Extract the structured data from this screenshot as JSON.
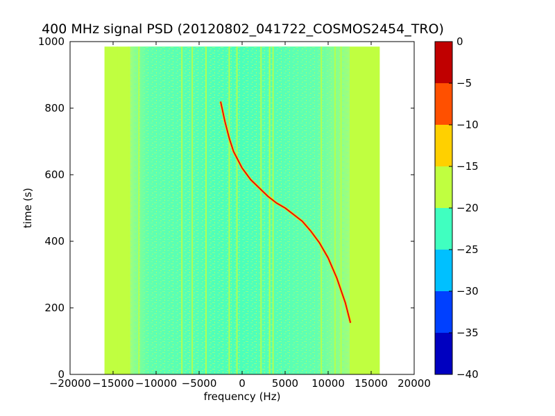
{
  "chart_data": {
    "type": "heatmap",
    "title": "400 MHz signal PSD (20120802_041722_COSMOS2454_TRO)",
    "xlabel": "frequency (Hz)",
    "ylabel": "time (s)",
    "xlim": [
      -20000,
      20000
    ],
    "ylim": [
      0,
      1000
    ],
    "x_ticks": [
      -20000,
      -15000,
      -10000,
      -5000,
      0,
      5000,
      10000,
      15000,
      20000
    ],
    "y_ticks": [
      0,
      200,
      400,
      600,
      800,
      1000
    ],
    "data_extent": {
      "x": [
        -16000,
        16000
      ],
      "y": [
        0,
        985
      ]
    },
    "colorbar": {
      "ticks": [
        0,
        -5,
        -10,
        -15,
        -20,
        -25,
        -30,
        -35,
        -40
      ],
      "range": [
        -40,
        0
      ],
      "levels": [
        {
          "from": -40,
          "to": -35,
          "color": "#0000c0"
        },
        {
          "from": -35,
          "to": -30,
          "color": "#0040ff"
        },
        {
          "from": -30,
          "to": -25,
          "color": "#00c0ff"
        },
        {
          "from": -25,
          "to": -20,
          "color": "#40ffc0"
        },
        {
          "from": -20,
          "to": -15,
          "color": "#c0ff40"
        },
        {
          "from": -15,
          "to": -10,
          "color": "#ffd000"
        },
        {
          "from": -10,
          "to": -5,
          "color": "#ff5000"
        },
        {
          "from": -5,
          "to": 0,
          "color": "#c00000"
        }
      ]
    },
    "background_level_color": "#40ffc0",
    "edge_level_color": "#c0ff40",
    "signal_trace": {
      "name": "",
      "color": "#e8000b",
      "points": [
        {
          "x": -2500,
          "y": 820
        },
        {
          "x": -2000,
          "y": 760
        },
        {
          "x": -1500,
          "y": 710
        },
        {
          "x": -1000,
          "y": 670
        },
        {
          "x": 0,
          "y": 620
        },
        {
          "x": 1000,
          "y": 585
        },
        {
          "x": 2000,
          "y": 560
        },
        {
          "x": 3000,
          "y": 535
        },
        {
          "x": 4000,
          "y": 515
        },
        {
          "x": 5000,
          "y": 500
        },
        {
          "x": 6000,
          "y": 480
        },
        {
          "x": 7000,
          "y": 460
        },
        {
          "x": 8000,
          "y": 430
        },
        {
          "x": 9000,
          "y": 395
        },
        {
          "x": 10000,
          "y": 350
        },
        {
          "x": 11000,
          "y": 290
        },
        {
          "x": 12000,
          "y": 215
        },
        {
          "x": 12600,
          "y": 155
        }
      ]
    },
    "vertical_stripes_x": [
      -14500,
      -13200,
      -12000,
      -7000,
      -5800,
      -4200,
      -1500,
      -600,
      2200,
      3200,
      3600,
      9200,
      10800,
      11500
    ]
  }
}
